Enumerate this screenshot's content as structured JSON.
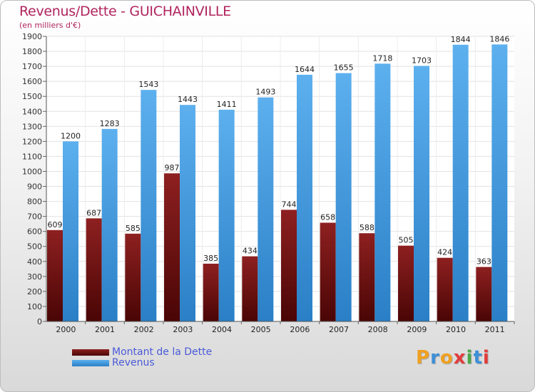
{
  "chart_data": {
    "type": "bar",
    "title": "Revenus/Dette - GUICHAINVILLE",
    "subtitle": "(en milliers d'€)",
    "categories": [
      "2000",
      "2001",
      "2002",
      "2003",
      "2004",
      "2005",
      "2006",
      "2007",
      "2008",
      "2009",
      "2010",
      "2011"
    ],
    "series": [
      {
        "name": "Montant de la Dette",
        "color": "#7a1212",
        "values": [
          609,
          687,
          585,
          987,
          385,
          434,
          744,
          658,
          588,
          505,
          424,
          363
        ]
      },
      {
        "name": "Revenus",
        "color": "#4aa3e6",
        "values": [
          1200,
          1283,
          1543,
          1443,
          1411,
          1493,
          1644,
          1655,
          1718,
          1703,
          1844,
          1846
        ]
      }
    ],
    "ylim": [
      0,
      1900
    ],
    "ytick_step": 100,
    "grid": true,
    "xlabel": "",
    "ylabel": ""
  },
  "logo": {
    "letters": [
      "P",
      "r",
      "o",
      "x",
      "i",
      "t",
      "i"
    ],
    "colors": [
      "#f0a020",
      "#3d8fd8",
      "#f0a020",
      "#e23c3c",
      "#4aa84a",
      "#3d8fd8",
      "#e23c3c"
    ]
  }
}
